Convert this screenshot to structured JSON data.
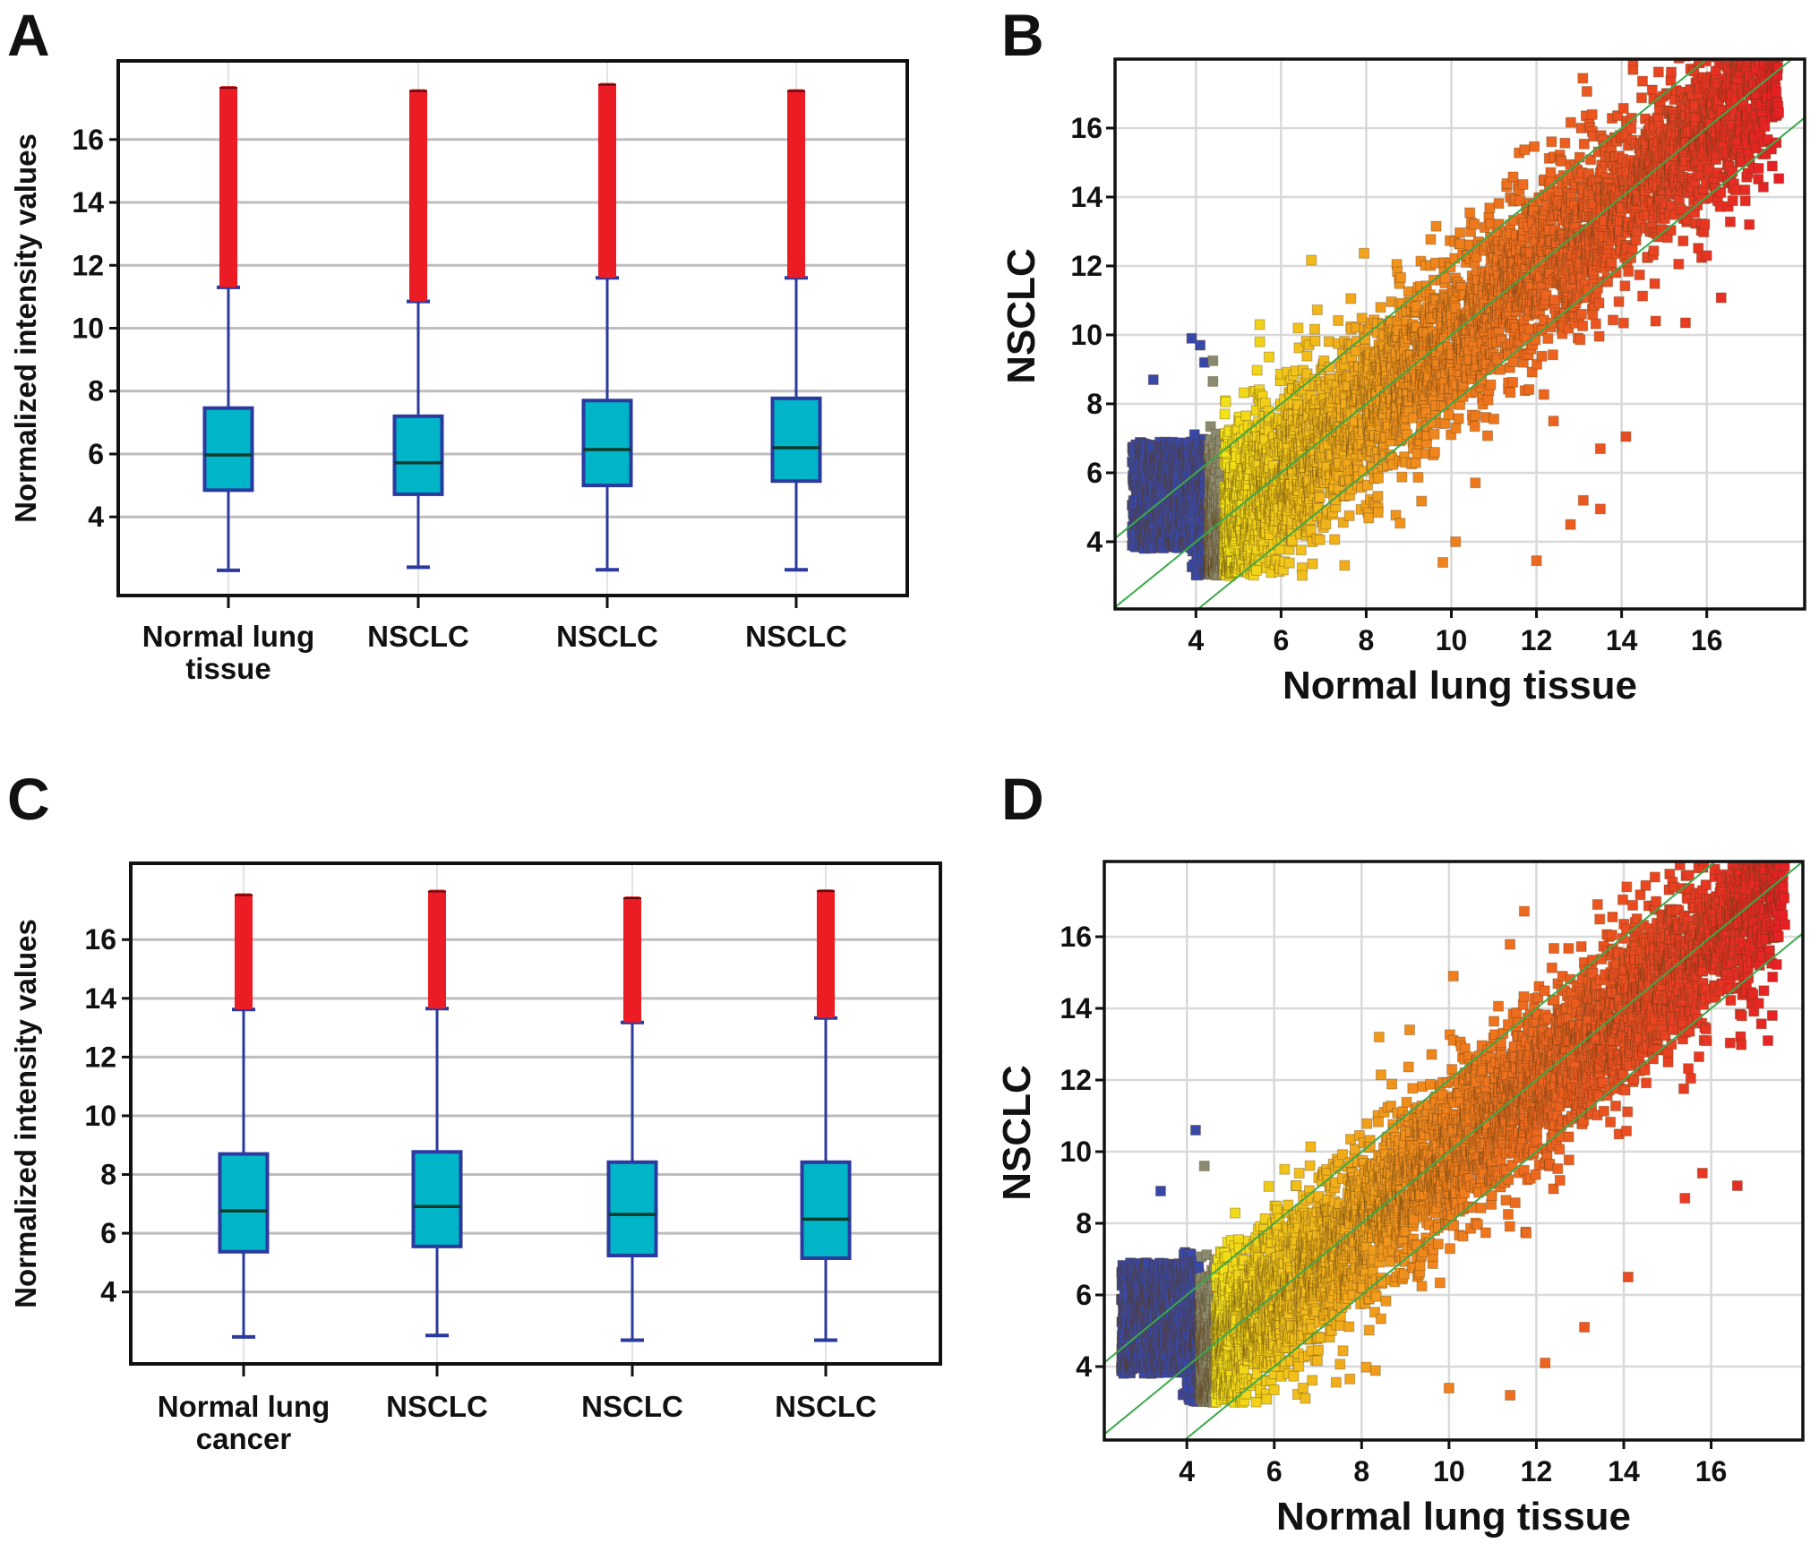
{
  "figure": {
    "panels": [
      "A",
      "B",
      "C",
      "D"
    ]
  },
  "colors": {
    "box_fill": "#00b5c8",
    "box_stroke": "#2b3a9e",
    "whisker": "#2b3a9e",
    "median": "#0b3b2a",
    "outlier": "#ec1c24",
    "gridline_box": "#bdbdbd",
    "gridline_scatter": "#d9d9d9",
    "diagonal": "#3aaa4a",
    "frame": "#111111",
    "scatter_low": "#3848a8",
    "scatter_mid_gray": "#8a8a70",
    "scatter_yellow": "#f2e318",
    "scatter_orange": "#f08a1c",
    "scatter_red": "#e51f24"
  },
  "chart_data": [
    {
      "panel": "A",
      "type": "box",
      "title": "",
      "ylabel": "Normalized intensity values",
      "xlabel": "",
      "ylim": [
        1.5,
        18.5
      ],
      "yticks": [
        4,
        6,
        8,
        10,
        12,
        14,
        16
      ],
      "grid": "horizontal",
      "categories": [
        "Normal lung tissue",
        "NSCLC",
        "NSCLC",
        "NSCLC"
      ],
      "category_lines": [
        [
          "Normal lung",
          "tissue"
        ],
        [
          "NSCLC"
        ],
        [
          "NSCLC"
        ],
        [
          "NSCLC"
        ]
      ],
      "boxes": [
        {
          "whisker_low": 2.3,
          "q1": 4.85,
          "median": 5.97,
          "q3": 7.46,
          "whisker_high": 11.3,
          "outlier_range": [
            11.3,
            17.7
          ]
        },
        {
          "whisker_low": 2.4,
          "q1": 4.72,
          "median": 5.72,
          "q3": 7.2,
          "whisker_high": 10.85,
          "outlier_range": [
            10.85,
            17.6
          ]
        },
        {
          "whisker_low": 2.32,
          "q1": 5.0,
          "median": 6.14,
          "q3": 7.7,
          "whisker_high": 11.6,
          "outlier_range": [
            11.6,
            17.8
          ]
        },
        {
          "whisker_low": 2.32,
          "q1": 5.14,
          "median": 6.2,
          "q3": 7.77,
          "whisker_high": 11.6,
          "outlier_range": [
            11.6,
            17.6
          ]
        }
      ]
    },
    {
      "panel": "B",
      "type": "scatter",
      "title": "",
      "xlabel": "Normal lung tissue",
      "ylabel": "NSCLC",
      "xlim": [
        2.1,
        18.3
      ],
      "ylim": [
        2.05,
        18.0
      ],
      "xticks": [
        4,
        6,
        8,
        10,
        12,
        14,
        16
      ],
      "yticks": [
        4,
        6,
        8,
        10,
        12,
        14,
        16
      ],
      "grid": "both",
      "reference_lines": [
        {
          "label": "y = x + 2",
          "slope": 1,
          "intercept": 2
        },
        {
          "label": "y = x",
          "slope": 1,
          "intercept": 0
        },
        {
          "label": "y = x - 2",
          "slope": 1,
          "intercept": -2
        }
      ],
      "color_scale": "blue (low, x < 4.3) → gray → yellow → orange → red (high)",
      "point_cloud": {
        "x_range": [
          2.5,
          17.7
        ],
        "y_floor": 3.0,
        "spread_sd": 1.1,
        "blue_cutoff_x": 4.3,
        "n_points": 5200,
        "seed": 11
      },
      "notable_points": [
        [
          3.9,
          9.9
        ],
        [
          4.1,
          9.7
        ],
        [
          3.0,
          8.7
        ],
        [
          4.2,
          9.2
        ],
        [
          4.4,
          9.25
        ],
        [
          4.4,
          8.65
        ],
        [
          5.5,
          10.3
        ],
        [
          5.5,
          9.8
        ],
        [
          6.4,
          10.2
        ],
        [
          11.3,
          14.3
        ],
        [
          11.6,
          14.2
        ],
        [
          13.5,
          6.7
        ],
        [
          14.1,
          7.05
        ],
        [
          13.5,
          4.95
        ],
        [
          13.1,
          5.2
        ],
        [
          12.8,
          4.5
        ],
        [
          12.0,
          3.45
        ],
        [
          15.5,
          10.35
        ],
        [
          14.8,
          10.4
        ],
        [
          16.0,
          12.3
        ],
        [
          17.0,
          13.2
        ],
        [
          12.4,
          7.5
        ],
        [
          9.8,
          3.4
        ],
        [
          10.1,
          4.0
        ],
        [
          17.5,
          17.5
        ],
        [
          17.3,
          17.2
        ]
      ]
    },
    {
      "panel": "C",
      "type": "box",
      "title": "",
      "ylabel": "Normalized intensity values",
      "xlabel": "",
      "ylim": [
        1.55,
        18.6
      ],
      "yticks": [
        4,
        6,
        8,
        10,
        12,
        14,
        16
      ],
      "grid": "horizontal",
      "categories": [
        "Normal lung cancer",
        "NSCLC",
        "NSCLC",
        "NSCLC"
      ],
      "category_lines": [
        [
          "Normal lung",
          "cancer"
        ],
        [
          "NSCLC"
        ],
        [
          "NSCLC"
        ],
        [
          "NSCLC"
        ]
      ],
      "boxes": [
        {
          "whisker_low": 2.47,
          "q1": 5.37,
          "median": 6.76,
          "q3": 8.7,
          "whisker_high": 13.62,
          "outlier_range": [
            13.62,
            17.58
          ]
        },
        {
          "whisker_low": 2.52,
          "q1": 5.55,
          "median": 6.91,
          "q3": 8.77,
          "whisker_high": 13.65,
          "outlier_range": [
            13.65,
            17.7
          ]
        },
        {
          "whisker_low": 2.36,
          "q1": 5.24,
          "median": 6.64,
          "q3": 8.42,
          "whisker_high": 13.18,
          "outlier_range": [
            13.18,
            17.47
          ]
        },
        {
          "whisker_low": 2.36,
          "q1": 5.15,
          "median": 6.48,
          "q3": 8.42,
          "whisker_high": 13.33,
          "outlier_range": [
            13.33,
            17.71
          ]
        }
      ]
    },
    {
      "panel": "D",
      "type": "scatter",
      "title": "",
      "xlabel": "Normal lung tissue",
      "ylabel": "NSCLC",
      "xlim": [
        2.11,
        18.1
      ],
      "ylim": [
        1.95,
        18.1
      ],
      "xticks": [
        4,
        6,
        8,
        10,
        12,
        14,
        16
      ],
      "yticks": [
        4,
        6,
        8,
        10,
        12,
        14,
        16
      ],
      "grid": "both",
      "reference_lines": [
        {
          "label": "y = x + 2",
          "slope": 1,
          "intercept": 2
        },
        {
          "label": "y = x",
          "slope": 1,
          "intercept": 0
        },
        {
          "label": "y = x - 2",
          "slope": 1,
          "intercept": -2
        }
      ],
      "color_scale": "blue (low, x < 4.3) → gray → yellow → orange → red (high)",
      "point_cloud": {
        "x_range": [
          2.5,
          17.7
        ],
        "y_floor": 3.0,
        "spread_sd": 0.95,
        "blue_cutoff_x": 4.3,
        "n_points": 6200,
        "seed": 29
      },
      "notable_points": [
        [
          4.2,
          10.6
        ],
        [
          4.4,
          9.6
        ],
        [
          3.4,
          8.9
        ],
        [
          10.1,
          14.9
        ],
        [
          12.6,
          14.9
        ],
        [
          13.4,
          16.9
        ],
        [
          14.3,
          16.5
        ],
        [
          8.4,
          13.2
        ],
        [
          9.1,
          13.4
        ],
        [
          16.6,
          9.05
        ],
        [
          15.4,
          8.7
        ],
        [
          15.8,
          9.4
        ],
        [
          14.1,
          6.5
        ],
        [
          12.2,
          4.1
        ],
        [
          11.4,
          3.2
        ],
        [
          10.0,
          3.4
        ],
        [
          13.1,
          5.1
        ],
        [
          17.3,
          13.1
        ],
        [
          17.4,
          13.8
        ],
        [
          17.5,
          17.6
        ],
        [
          17.5,
          17.1
        ]
      ]
    }
  ]
}
